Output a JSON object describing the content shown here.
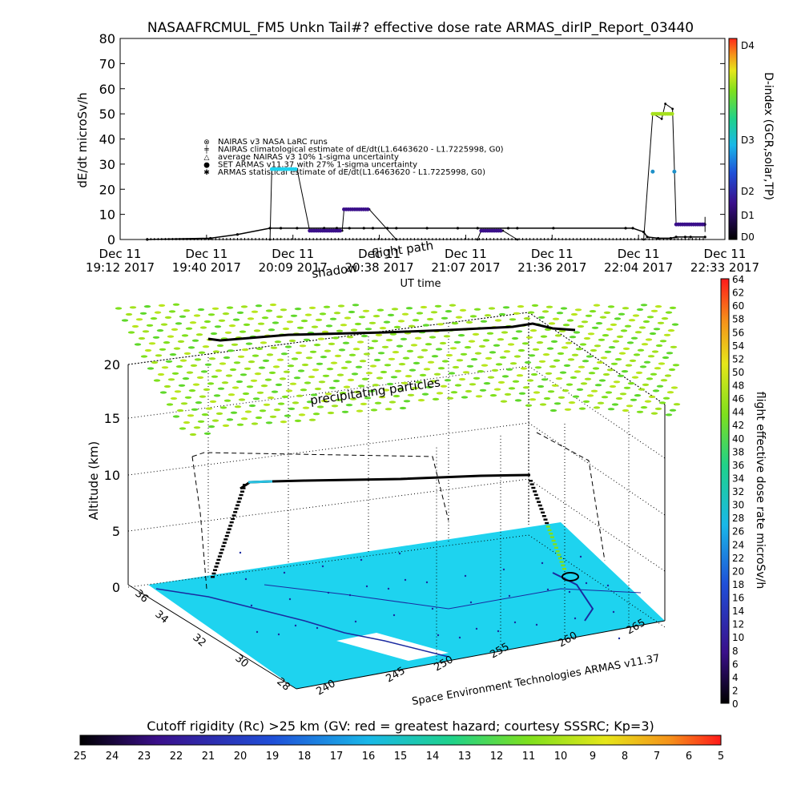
{
  "title": "NASAAFRCMUL_FM5 Unkn Tail#? effective dose rate ARMAS_dirIP_Report_03440",
  "colors": {
    "nairas": "#000000",
    "armas": "#1e90c8",
    "trace": "#000000",
    "bg": "#ffffff"
  },
  "chart_data": [
    {
      "type": "line",
      "ylabel": "dE/dt microSv/h",
      "xlabel": "UT time",
      "ylim": [
        0,
        80
      ],
      "yticks": [
        "0",
        "10",
        "20",
        "30",
        "40",
        "50",
        "60",
        "70",
        "80"
      ],
      "xticks": [
        {
          "d": "Dec 11",
          "t": "19:12 2017"
        },
        {
          "d": "Dec 11",
          "t": "19:40 2017"
        },
        {
          "d": "Dec 11",
          "t": "20:09 2017"
        },
        {
          "d": "Dec 11",
          "t": "20:38 2017"
        },
        {
          "d": "Dec 11",
          "t": "21:07 2017"
        },
        {
          "d": "Dec 11",
          "t": "21:36 2017"
        },
        {
          "d": "Dec 11",
          "t": "22:04 2017"
        },
        {
          "d": "Dec 11",
          "t": "22:33 2017"
        }
      ],
      "legend": [
        "NAIRAS v3 NASA LaRC runs",
        "NAIRAS climatological estimate of dE/dt(L1.6463620 - L1.7225998, G0)",
        "average NAIRAS v3 10% 1-sigma uncertainty",
        "SET ARMAS v11.37 with 27% 1-sigma uncertainty",
        "ARMAS statistical estimate of dE/dt(L1.6463620 - L1.7225998, G0)"
      ],
      "legend_symbols": [
        "⊗",
        "╪",
        "△",
        "●",
        "✱"
      ],
      "series": [
        {
          "x_min": [
            19.35,
            19.7,
            19.85,
            20.03,
            20.09,
            20.18,
            20.33,
            20.4,
            20.47,
            20.55,
            20.6,
            20.68,
            20.73,
            20.9,
            21.07,
            21.18,
            21.35,
            21.4,
            21.6,
            22.0,
            22.04,
            22.1,
            22.12,
            22.18,
            22.25,
            22.28,
            22.33,
            22.36,
            22.44
          ],
          "y": [
            0,
            0.5,
            2,
            4.5,
            4.5,
            4.5,
            4.5,
            4.5,
            4.5,
            4.5,
            4.5,
            4.5,
            4.5,
            4.5,
            4.5,
            4.5,
            4.5,
            4.5,
            4.5,
            4.5,
            4.5,
            3,
            1,
            0.5,
            0.5,
            1,
            1,
            1,
            1
          ]
        },
        {
          "x_min": [
            19.35,
            20.03,
            20.04,
            20.18,
            20.25,
            20.43,
            20.44,
            20.58,
            20.73,
            21.18,
            21.2,
            21.32,
            21.4,
            22.1,
            22.15,
            22.2,
            22.22,
            22.26,
            22.28,
            22.33,
            22.44
          ],
          "y": [
            0,
            0,
            28,
            28,
            3.5,
            3.5,
            12,
            12,
            0,
            0,
            3.5,
            3.5,
            0,
            0,
            50,
            48,
            54,
            52,
            6,
            6,
            6
          ]
        }
      ],
      "armas_points": [
        {
          "x_min": 22.15,
          "y": 27
        },
        {
          "x_min": 22.27,
          "y": 27
        }
      ],
      "colorbar": {
        "label": "D-index (GCR,solar,TP)",
        "ticks": [
          "D0",
          "D1",
          "D2",
          "D3",
          "D4"
        ]
      }
    },
    {
      "type": "scatter",
      "ylabel": "Altitude (km)",
      "zticks": [
        "0",
        "5",
        "10",
        "15",
        "20"
      ],
      "lat_ticks": [
        "36",
        "34",
        "32",
        "30",
        "28"
      ],
      "lon_ticks": [
        "240",
        "245",
        "250",
        "255",
        "260",
        "265"
      ],
      "annotations": [
        "shadow",
        "flight path",
        "precipitating particles"
      ],
      "footer": "Space Environment Technologies ARMAS v11.37",
      "colorbar": {
        "label": "flight effective dose rate microSv/h",
        "ticks": [
          "0",
          "2",
          "4",
          "6",
          "8",
          "10",
          "12",
          "14",
          "16",
          "18",
          "20",
          "22",
          "24",
          "26",
          "28",
          "30",
          "32",
          "34",
          "36",
          "38",
          "40",
          "42",
          "44",
          "46",
          "48",
          "50",
          "52",
          "54",
          "56",
          "58",
          "60",
          "62",
          "64"
        ]
      }
    },
    {
      "type": "heatmap",
      "title": "Cutoff rigidity (Rc) >25 km (GV: red = greatest hazard; courtesy SSSRC; Kp=3)",
      "ticks": [
        "25",
        "24",
        "23",
        "22",
        "21",
        "20",
        "19",
        "18",
        "17",
        "16",
        "15",
        "14",
        "13",
        "12",
        "11",
        "10",
        "9",
        "8",
        "7",
        "6",
        "5"
      ]
    }
  ]
}
